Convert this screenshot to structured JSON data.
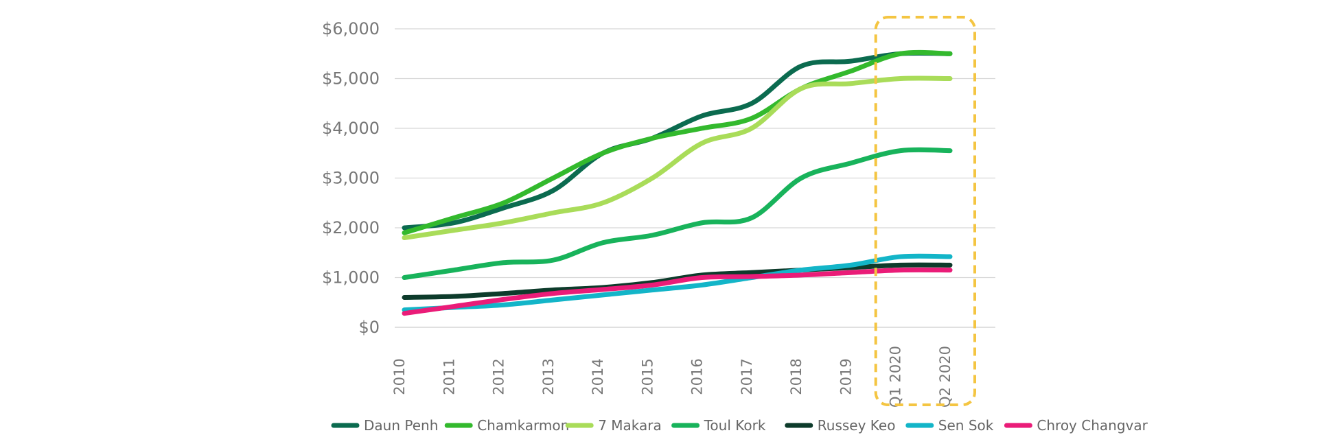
{
  "chart_data": {
    "type": "line",
    "categories": [
      "2010",
      "2011",
      "2012",
      "2013",
      "2014",
      "2015",
      "2016",
      "2017",
      "2018",
      "2019",
      "Q1 2020",
      "Q2 2020"
    ],
    "ytick_labels": [
      "$0",
      "$1,000",
      "$2,000",
      "$3,000",
      "$4,000",
      "$5,000",
      "$6,000"
    ],
    "ylim": [
      0,
      6000
    ],
    "grid": true,
    "legend_position": "bottom",
    "highlight_categories": [
      "Q1 2020",
      "Q2 2020"
    ],
    "series": [
      {
        "name": "Daun Penh",
        "color": "#0b6b4f",
        "values": [
          2000,
          2100,
          2400,
          2750,
          3500,
          3800,
          4250,
          4500,
          5250,
          5350,
          5500,
          5500
        ]
      },
      {
        "name": "Chamkarmon",
        "color": "#33b92d",
        "values": [
          1900,
          2200,
          2500,
          3000,
          3500,
          3800,
          4000,
          4200,
          4800,
          5150,
          5500,
          5500
        ]
      },
      {
        "name": "7 Makara",
        "color": "#a9dc59",
        "values": [
          1800,
          1950,
          2100,
          2300,
          2500,
          3000,
          3700,
          4000,
          4800,
          4900,
          5000,
          5000
        ]
      },
      {
        "name": "Toul Kork",
        "color": "#18b35b",
        "values": [
          1000,
          1150,
          1300,
          1350,
          1700,
          1850,
          2100,
          2200,
          3000,
          3300,
          3550,
          3550
        ]
      },
      {
        "name": "Russey Keo",
        "color": "#0d3b2b",
        "values": [
          600,
          620,
          680,
          750,
          800,
          900,
          1050,
          1100,
          1150,
          1200,
          1250,
          1250
        ]
      },
      {
        "name": "Sen Sok",
        "color": "#13b5c8",
        "values": [
          350,
          400,
          450,
          550,
          650,
          750,
          850,
          1000,
          1150,
          1250,
          1420,
          1420
        ]
      },
      {
        "name": "Chroy Changvar",
        "color": "#ea1c78",
        "values": [
          280,
          420,
          560,
          680,
          760,
          850,
          1000,
          1020,
          1050,
          1100,
          1150,
          1150
        ]
      }
    ]
  }
}
